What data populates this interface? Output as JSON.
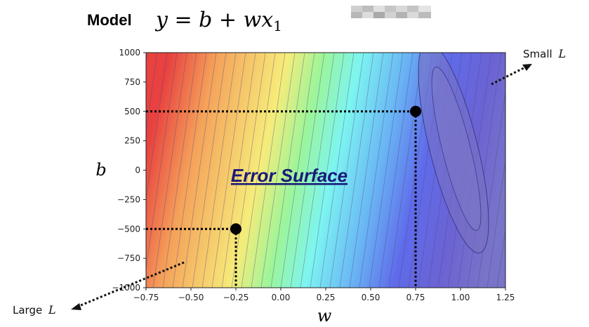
{
  "title": {
    "word": "Model",
    "formula_parts": [
      "y",
      " = ",
      "b",
      " + ",
      "w",
      "x",
      "1"
    ]
  },
  "surface_label": "Error Surface",
  "annotations": {
    "small": {
      "text": "Small",
      "var": "L"
    },
    "large": {
      "text": "Large",
      "var": "L"
    }
  },
  "chart_data": {
    "type": "heatmap",
    "xlabel": "w",
    "ylabel": "b",
    "xlim": [
      -0.75,
      1.25
    ],
    "ylim": [
      -1000,
      1000
    ],
    "xticks": [
      "−0.75",
      "−0.50",
      "−0.25",
      "0.00",
      "0.25",
      "0.50",
      "0.75",
      "1.00",
      "1.25"
    ],
    "xtick_values": [
      -0.75,
      -0.5,
      -0.25,
      0,
      0.25,
      0.5,
      0.75,
      1.0,
      1.25
    ],
    "yticks": [
      "1000",
      "750",
      "500",
      "250",
      "0",
      "−250",
      "−500",
      "−750",
      "−1000"
    ],
    "ytick_values": [
      1000,
      750,
      500,
      250,
      0,
      -250,
      -500,
      -750,
      -1000
    ],
    "colormap": [
      "#e8413f",
      "#f5a25a",
      "#f6ec7a",
      "#9cf59a",
      "#7df5f0",
      "#6ab7f5",
      "#5f6bea",
      "#6b63d4",
      "#7874c8"
    ],
    "points": [
      {
        "name": "point-high",
        "w": 0.75,
        "b": 500
      },
      {
        "name": "point-low",
        "w": -0.25,
        "b": -500
      }
    ]
  }
}
